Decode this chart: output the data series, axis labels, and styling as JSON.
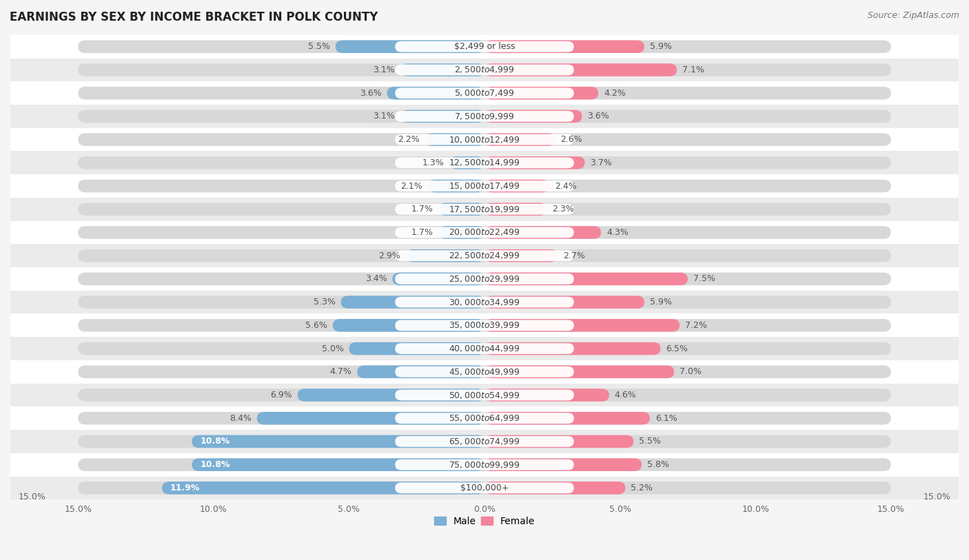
{
  "title": "EARNINGS BY SEX BY INCOME BRACKET IN POLK COUNTY",
  "source": "Source: ZipAtlas.com",
  "categories": [
    "$2,499 or less",
    "$2,500 to $4,999",
    "$5,000 to $7,499",
    "$7,500 to $9,999",
    "$10,000 to $12,499",
    "$12,500 to $14,999",
    "$15,000 to $17,499",
    "$17,500 to $19,999",
    "$20,000 to $22,499",
    "$22,500 to $24,999",
    "$25,000 to $29,999",
    "$30,000 to $34,999",
    "$35,000 to $39,999",
    "$40,000 to $44,999",
    "$45,000 to $49,999",
    "$50,000 to $54,999",
    "$55,000 to $64,999",
    "$65,000 to $74,999",
    "$75,000 to $99,999",
    "$100,000+"
  ],
  "male_values": [
    5.5,
    3.1,
    3.6,
    3.1,
    2.2,
    1.3,
    2.1,
    1.7,
    1.7,
    2.9,
    3.4,
    5.3,
    5.6,
    5.0,
    4.7,
    6.9,
    8.4,
    10.8,
    10.8,
    11.9
  ],
  "female_values": [
    5.9,
    7.1,
    4.2,
    3.6,
    2.6,
    3.7,
    2.4,
    2.3,
    4.3,
    2.7,
    7.5,
    5.9,
    7.2,
    6.5,
    7.0,
    4.6,
    6.1,
    5.5,
    5.8,
    5.2
  ],
  "male_color": "#7BAFD4",
  "female_color": "#F4849A",
  "male_label": "Male",
  "female_label": "Female",
  "bg_color": "#f5f5f5",
  "row_color_even": "#ffffff",
  "row_color_odd": "#ebebeb",
  "axis_limit": 15.0,
  "title_fontsize": 12,
  "source_fontsize": 9,
  "label_fontsize": 9,
  "category_fontsize": 9
}
